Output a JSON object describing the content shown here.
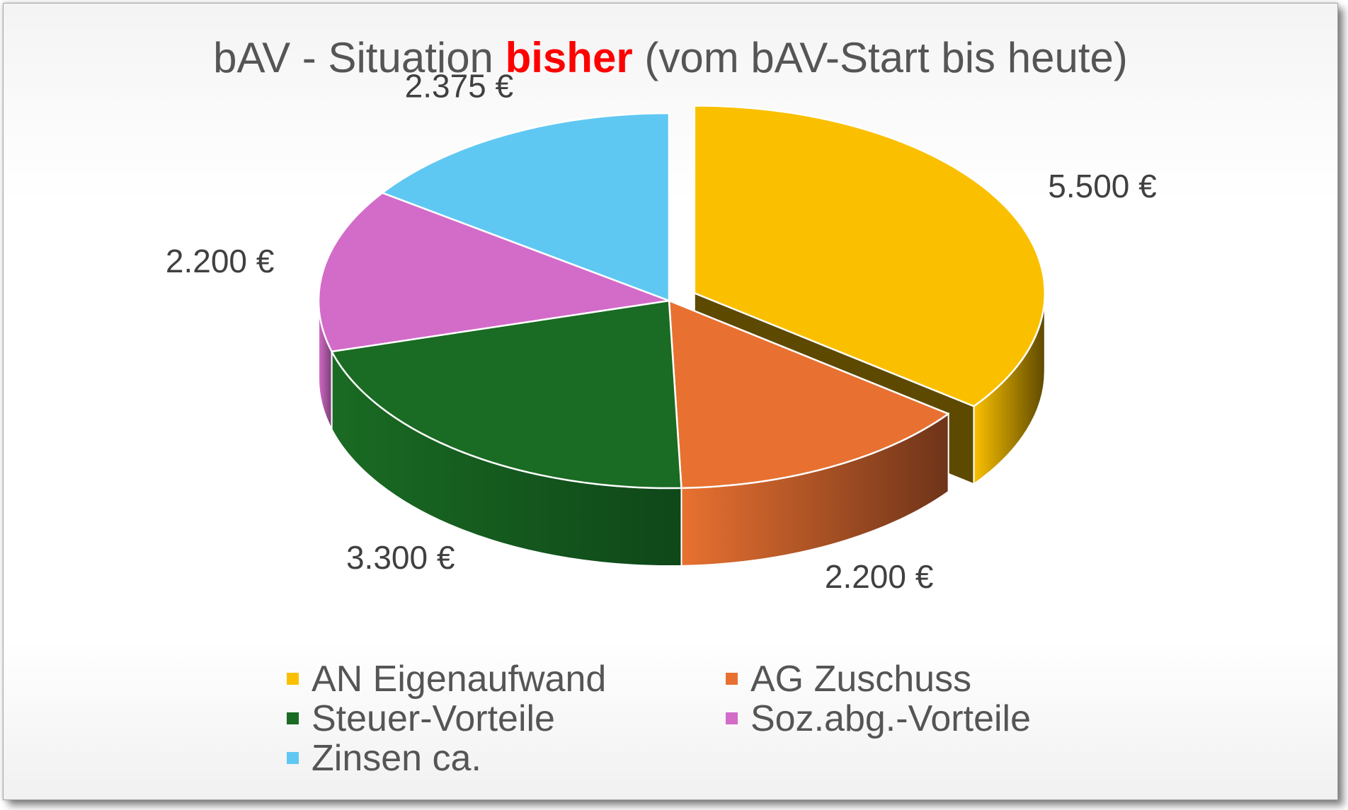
{
  "chart_data": {
    "type": "pie",
    "title": {
      "before": "bAV - Situation ",
      "highlight": "bisher",
      "after": " (vom bAV-Start bis heute)"
    },
    "categories": [
      "AN Eigenaufwand",
      "AG Zuschuss",
      "Steuer-Vorteile",
      "Soz.abg.-Vorteile",
      "Zinsen ca."
    ],
    "values": [
      5500,
      2200,
      3300,
      2200,
      2375
    ],
    "data_labels": [
      "5.500 €",
      "2.200 €",
      "3.300 €",
      "2.200 €",
      "2.375 €"
    ],
    "colors": [
      "#fac000",
      "#e87131",
      "#1a6b23",
      "#d36bc9",
      "#5fc8f2"
    ],
    "side_colors": [
      "#5e4900",
      "#6e3419",
      "#0f4719",
      "#7a3f75",
      "#2f7da0"
    ],
    "title_highlight_color": "#ff0000",
    "exploded": "AN Eigenaufwand",
    "legend_position": "bottom",
    "style": "3d"
  }
}
